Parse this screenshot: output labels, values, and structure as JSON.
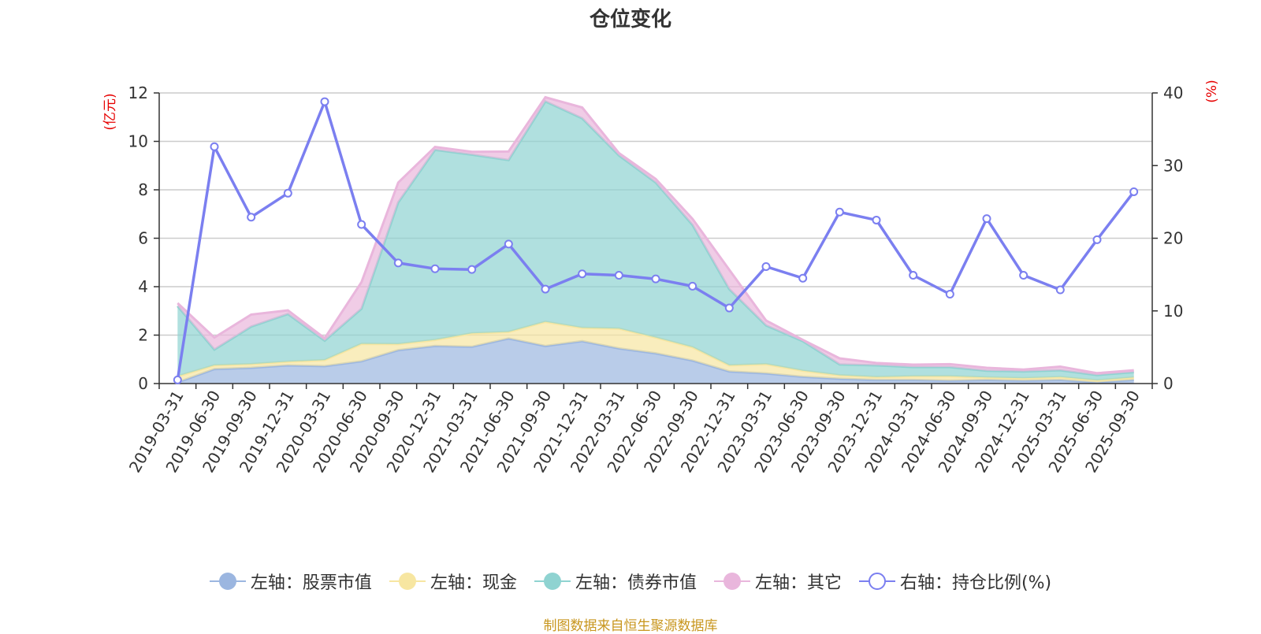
{
  "title": "仓位变化",
  "source": "制图数据来自恒生聚源数据库",
  "left_axis_unit": "(亿元)",
  "right_axis_unit": "(%)",
  "colors": {
    "stock": "#9bb6e0",
    "cash": "#f7e6a1",
    "bond": "#8fd3d1",
    "other": "#e9b6dc",
    "ratio": "#7b7ff0",
    "grid": "#cccccc",
    "axis": "#333333",
    "unit": "#e60000"
  },
  "legend": [
    {
      "label": "左轴：股票市值",
      "series": "stock"
    },
    {
      "label": "左轴：现金",
      "series": "cash"
    },
    {
      "label": "左轴：债券市值",
      "series": "bond"
    },
    {
      "label": "左轴：其它",
      "series": "other"
    },
    {
      "label": "右轴：持仓比例(%)",
      "series": "ratio"
    }
  ],
  "chart_data": {
    "type": "area",
    "title": "仓位变化",
    "categories": [
      "2019-03-31",
      "2019-06-30",
      "2019-09-30",
      "2019-12-31",
      "2020-03-31",
      "2020-06-30",
      "2020-09-30",
      "2020-12-31",
      "2021-03-31",
      "2021-06-30",
      "2021-09-30",
      "2021-12-31",
      "2022-03-31",
      "2022-06-30",
      "2022-09-30",
      "2022-12-31",
      "2023-03-31",
      "2023-06-30",
      "2023-09-30",
      "2023-12-31",
      "2024-03-31",
      "2024-06-30",
      "2024-09-30",
      "2024-12-31",
      "2025-03-31",
      "2025-06-30",
      "2025-09-30"
    ],
    "ylim_left": [
      0,
      12
    ],
    "yticks_left": [
      0,
      2,
      4,
      6,
      8,
      10,
      12
    ],
    "ylim_right": [
      0,
      40
    ],
    "yticks_right": [
      0,
      10,
      20,
      30,
      40
    ],
    "stacked": true,
    "series": [
      {
        "name": "股票市值",
        "axis": "left",
        "key": "stock",
        "values": [
          0.05,
          0.6,
          0.65,
          0.75,
          0.72,
          0.92,
          1.38,
          1.55,
          1.52,
          1.86,
          1.55,
          1.75,
          1.45,
          1.25,
          0.95,
          0.5,
          0.42,
          0.28,
          0.2,
          0.15,
          0.15,
          0.12,
          0.15,
          0.12,
          0.15,
          0.05,
          0.15
        ]
      },
      {
        "name": "现金",
        "axis": "left",
        "key": "cash",
        "values": [
          0.25,
          0.15,
          0.15,
          0.15,
          0.25,
          0.72,
          0.25,
          0.25,
          0.55,
          0.27,
          1.0,
          0.55,
          0.82,
          0.65,
          0.55,
          0.25,
          0.38,
          0.25,
          0.14,
          0.12,
          0.15,
          0.18,
          0.1,
          0.1,
          0.12,
          0.08,
          0.1
        ]
      },
      {
        "name": "债券市值",
        "axis": "left",
        "key": "bond",
        "values": [
          2.9,
          0.65,
          1.55,
          1.97,
          0.8,
          1.45,
          5.85,
          7.85,
          7.38,
          7.1,
          9.1,
          8.65,
          7.15,
          6.4,
          5.05,
          3.15,
          1.6,
          1.22,
          0.45,
          0.48,
          0.38,
          0.38,
          0.28,
          0.28,
          0.28,
          0.22,
          0.22
        ]
      },
      {
        "name": "其它",
        "axis": "left",
        "key": "other",
        "values": [
          0.12,
          0.5,
          0.5,
          0.15,
          0.1,
          1.1,
          0.82,
          0.12,
          0.12,
          0.35,
          0.17,
          0.45,
          0.1,
          0.15,
          0.25,
          0.8,
          0.2,
          0.05,
          0.25,
          0.1,
          0.1,
          0.12,
          0.12,
          0.08,
          0.15,
          0.08,
          0.08
        ]
      },
      {
        "name": "持仓比例(%)",
        "axis": "right",
        "key": "ratio",
        "values": [
          0.5,
          32.6,
          22.9,
          26.2,
          38.8,
          21.9,
          16.6,
          15.8,
          15.7,
          19.2,
          13.0,
          15.1,
          14.9,
          14.4,
          13.4,
          10.4,
          16.1,
          14.5,
          23.6,
          22.5,
          14.9,
          12.3,
          22.7,
          14.9,
          12.9,
          19.8,
          26.4
        ]
      }
    ]
  }
}
